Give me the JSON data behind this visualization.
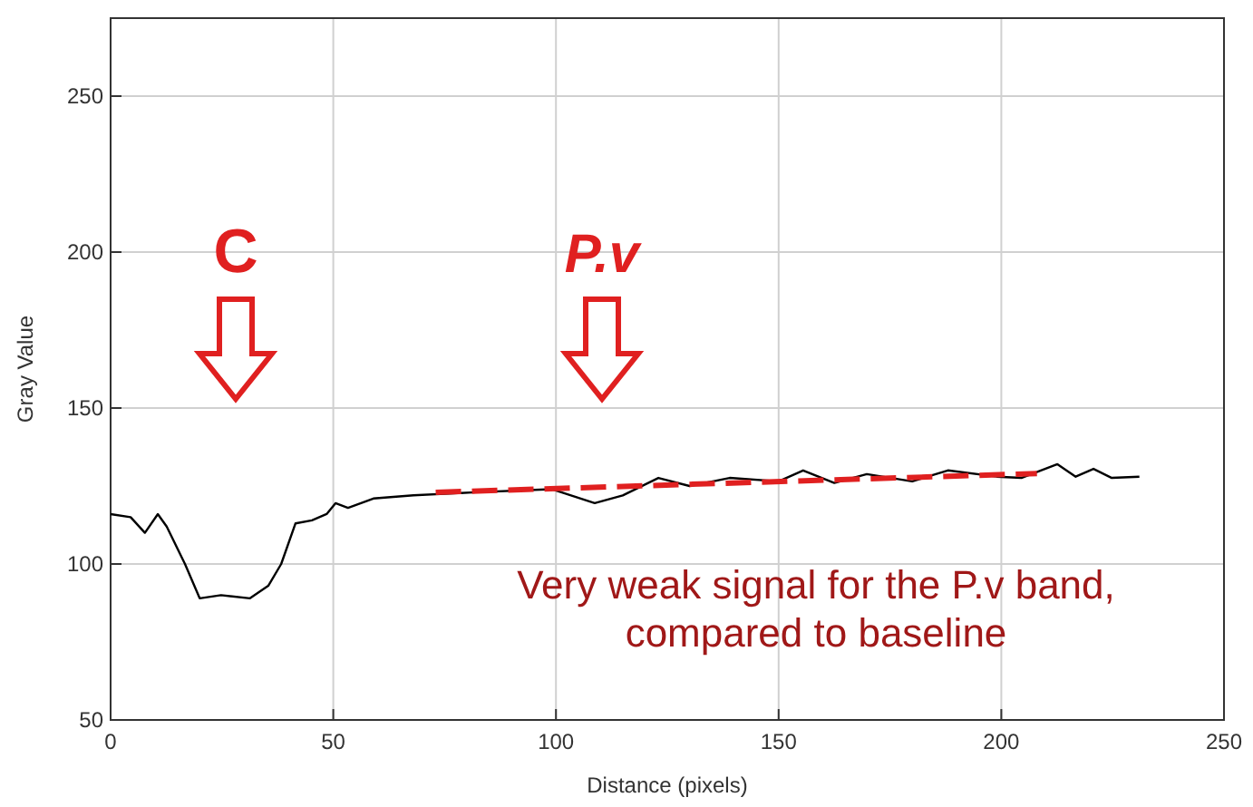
{
  "chart_data": {
    "type": "line",
    "xlabel": "Distance (pixels)",
    "ylabel": "Gray Value",
    "xlim": [
      0,
      250
    ],
    "ylim": [
      50,
      275
    ],
    "xticks": [
      0,
      50,
      100,
      150,
      200,
      250
    ],
    "yticks": [
      50,
      100,
      150,
      200,
      250
    ],
    "grid": true,
    "series": [
      {
        "color": "#000000",
        "line_style": "solid",
        "x": [
          0,
          4.5,
          7.7,
          10.6,
          12.6,
          16.7,
          20,
          24.8,
          31.3,
          35.4,
          38.3,
          41.5,
          45.2,
          48.5,
          50.5,
          53.3,
          59,
          68,
          82,
          99,
          108.7,
          115,
          123,
          130,
          139,
          150,
          155.5,
          162.5,
          169.8,
          180,
          188,
          199,
          204.5,
          212.6,
          216.7,
          220.7,
          224.8,
          231
        ],
        "values": [
          116,
          115,
          110,
          116,
          112,
          100,
          89,
          90,
          89,
          93,
          100,
          113,
          114,
          116,
          119.5,
          118,
          121,
          122,
          123,
          124,
          119.5,
          122,
          127.6,
          125,
          127.6,
          126.5,
          130,
          126,
          128.8,
          126.5,
          130,
          128,
          127.6,
          132,
          128,
          130.5,
          127.6,
          128
        ]
      },
      {
        "color": "#e02020",
        "line_style": "dashed",
        "x": [
          73,
          208
        ],
        "values": [
          123,
          129
        ]
      }
    ],
    "annotations": [
      "C",
      "P.v",
      "Very weak signal for the P.v band,\ncompared to baseline"
    ]
  }
}
